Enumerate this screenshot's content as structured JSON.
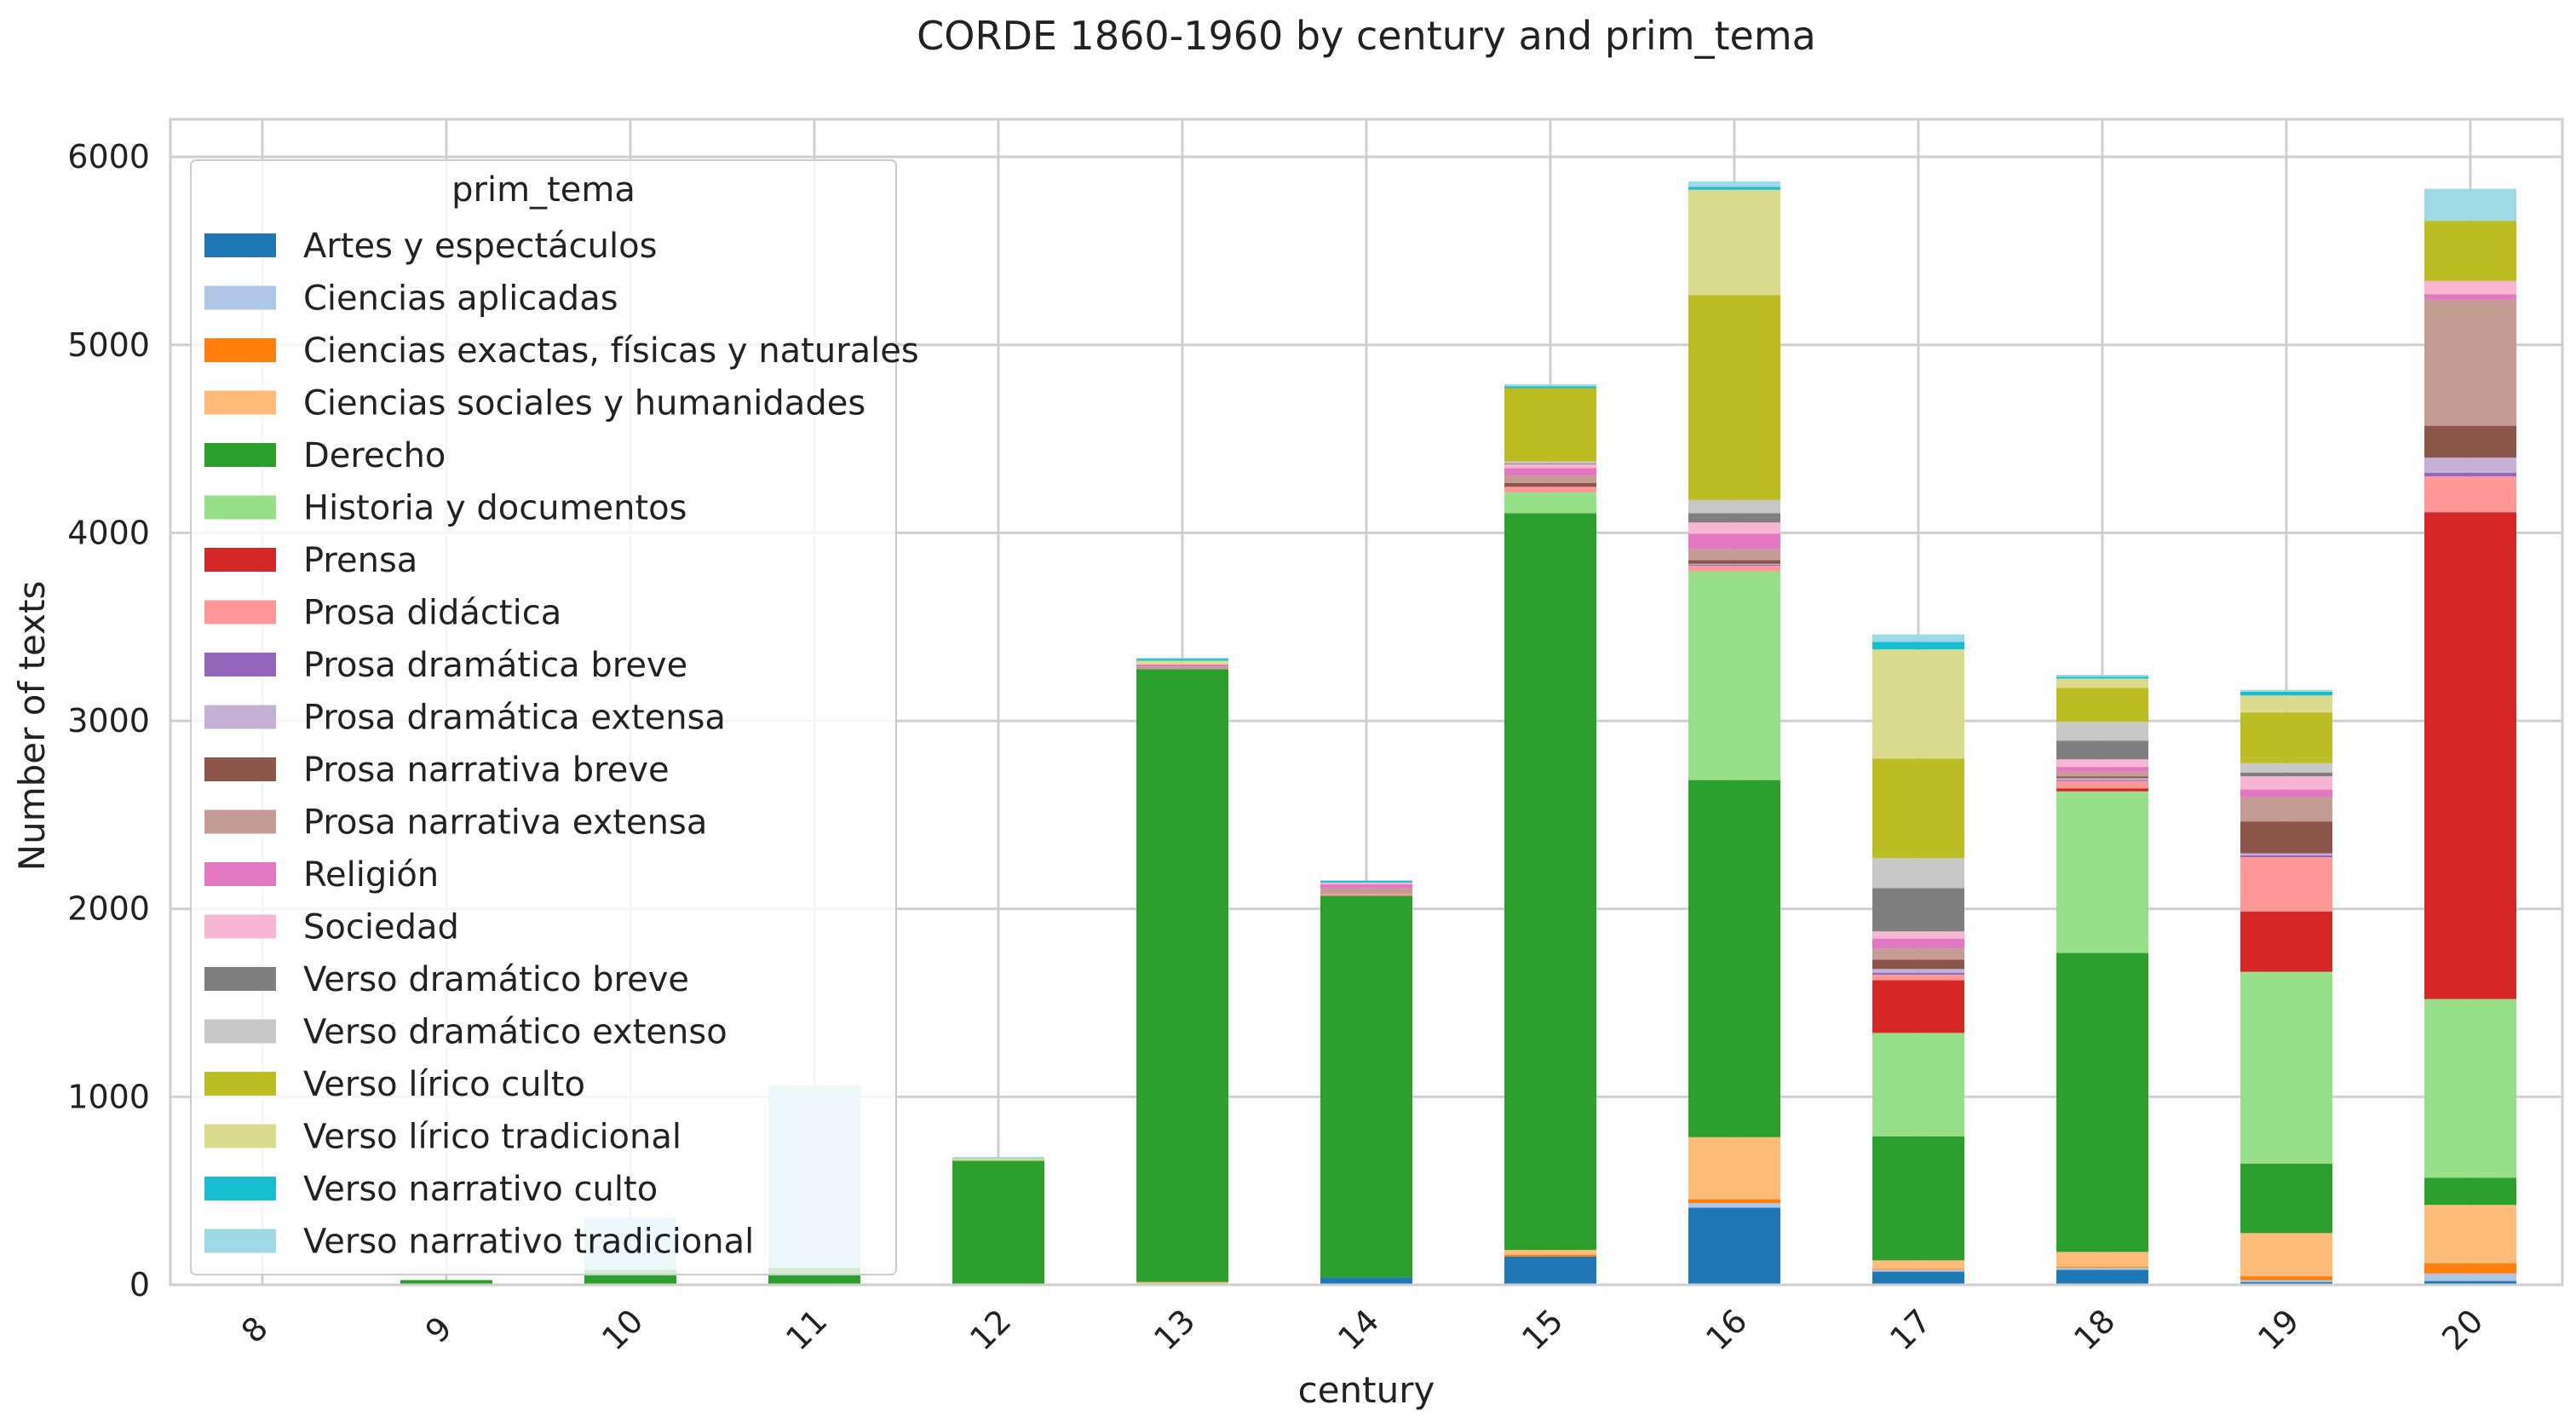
{
  "chart_data": {
    "type": "bar",
    "stacked": true,
    "title": "CORDE 1860-1960 by century and prim_tema",
    "xlabel": "century",
    "ylabel": "Number of texts",
    "ylim": [
      0,
      6200
    ],
    "yticks": [
      0,
      1000,
      2000,
      3000,
      4000,
      5000,
      6000
    ],
    "grid": true,
    "legend_position": "upper-left",
    "legend_title": "prim_tema",
    "categories": [
      "8",
      "9",
      "10",
      "11",
      "12",
      "13",
      "14",
      "15",
      "16",
      "17",
      "18",
      "19",
      "20"
    ],
    "series": [
      {
        "name": "Artes y espectáculos",
        "color": "#1f77b4",
        "values": [
          0,
          0,
          0,
          0,
          0,
          0,
          40,
          150,
          410,
          70,
          80,
          15,
          20
        ]
      },
      {
        "name": "Ciencias aplicadas",
        "color": "#aec7e8",
        "values": [
          0,
          0,
          0,
          0,
          0,
          0,
          0,
          0,
          25,
          10,
          10,
          10,
          40
        ]
      },
      {
        "name": "Ciencias exactas, físicas y naturales",
        "color": "#ff7f0e",
        "values": [
          0,
          0,
          0,
          0,
          0,
          5,
          0,
          10,
          20,
          5,
          5,
          20,
          55
        ]
      },
      {
        "name": "Ciencias sociales y humanidades",
        "color": "#ffbb78",
        "values": [
          0,
          0,
          0,
          0,
          0,
          10,
          0,
          25,
          330,
          45,
          80,
          230,
          310
        ]
      },
      {
        "name": "Derecho",
        "color": "#2ca02c",
        "values": [
          0,
          25,
          80,
          90,
          660,
          3260,
          2030,
          3920,
          1900,
          660,
          1590,
          370,
          145
        ]
      },
      {
        "name": "Historia y documentos",
        "color": "#98df8a",
        "values": [
          0,
          0,
          0,
          0,
          0,
          0,
          0,
          110,
          1110,
          550,
          860,
          1020,
          950
        ]
      },
      {
        "name": "Prensa",
        "color": "#d62728",
        "values": [
          0,
          0,
          0,
          0,
          0,
          0,
          0,
          0,
          0,
          280,
          15,
          320,
          2590
        ]
      },
      {
        "name": "Prosa didáctica",
        "color": "#ff9896",
        "values": [
          0,
          0,
          0,
          0,
          0,
          0,
          10,
          30,
          30,
          30,
          40,
          290,
          190
        ]
      },
      {
        "name": "Prosa dramática breve",
        "color": "#9467bd",
        "values": [
          0,
          0,
          0,
          0,
          0,
          0,
          0,
          0,
          5,
          10,
          5,
          10,
          20
        ]
      },
      {
        "name": "Prosa dramática extensa",
        "color": "#c5b0d5",
        "values": [
          0,
          0,
          0,
          0,
          0,
          0,
          0,
          0,
          5,
          20,
          10,
          10,
          80
        ]
      },
      {
        "name": "Prosa narrativa breve",
        "color": "#8c564b",
        "values": [
          0,
          0,
          0,
          0,
          0,
          0,
          0,
          20,
          20,
          50,
          10,
          170,
          170
        ]
      },
      {
        "name": "Prosa narrativa extensa",
        "color": "#c49c94",
        "values": [
          0,
          0,
          0,
          0,
          0,
          15,
          30,
          40,
          60,
          60,
          25,
          130,
          670
        ]
      },
      {
        "name": "Religión",
        "color": "#e377c2",
        "values": [
          0,
          0,
          0,
          0,
          0,
          10,
          20,
          40,
          80,
          50,
          25,
          40,
          30
        ]
      },
      {
        "name": "Sociedad",
        "color": "#f7b6d2",
        "values": [
          0,
          0,
          0,
          0,
          0,
          0,
          10,
          20,
          60,
          40,
          40,
          70,
          70
        ]
      },
      {
        "name": "Verso dramático breve",
        "color": "#7f7f7f",
        "values": [
          0,
          0,
          0,
          0,
          0,
          0,
          0,
          5,
          50,
          230,
          100,
          20,
          0
        ]
      },
      {
        "name": "Verso dramático extenso",
        "color": "#c7c7c7",
        "values": [
          0,
          0,
          0,
          0,
          0,
          0,
          0,
          10,
          70,
          160,
          100,
          50,
          0
        ]
      },
      {
        "name": "Verso lírico culto",
        "color": "#bcbd22",
        "values": [
          0,
          0,
          0,
          0,
          0,
          0,
          0,
          390,
          1090,
          530,
          180,
          270,
          320
        ]
      },
      {
        "name": "Verso lírico tradicional",
        "color": "#dbdb8d",
        "values": [
          0,
          0,
          0,
          0,
          10,
          20,
          0,
          0,
          560,
          580,
          50,
          90,
          0
        ]
      },
      {
        "name": "Verso narrativo culto",
        "color": "#17becf",
        "values": [
          0,
          0,
          0,
          0,
          0,
          10,
          10,
          10,
          15,
          40,
          10,
          20,
          0
        ]
      },
      {
        "name": "Verso narrativo tradicional",
        "color": "#9edae5",
        "values": [
          0,
          0,
          280,
          970,
          10,
          5,
          0,
          10,
          30,
          40,
          10,
          10,
          170
        ]
      }
    ]
  }
}
